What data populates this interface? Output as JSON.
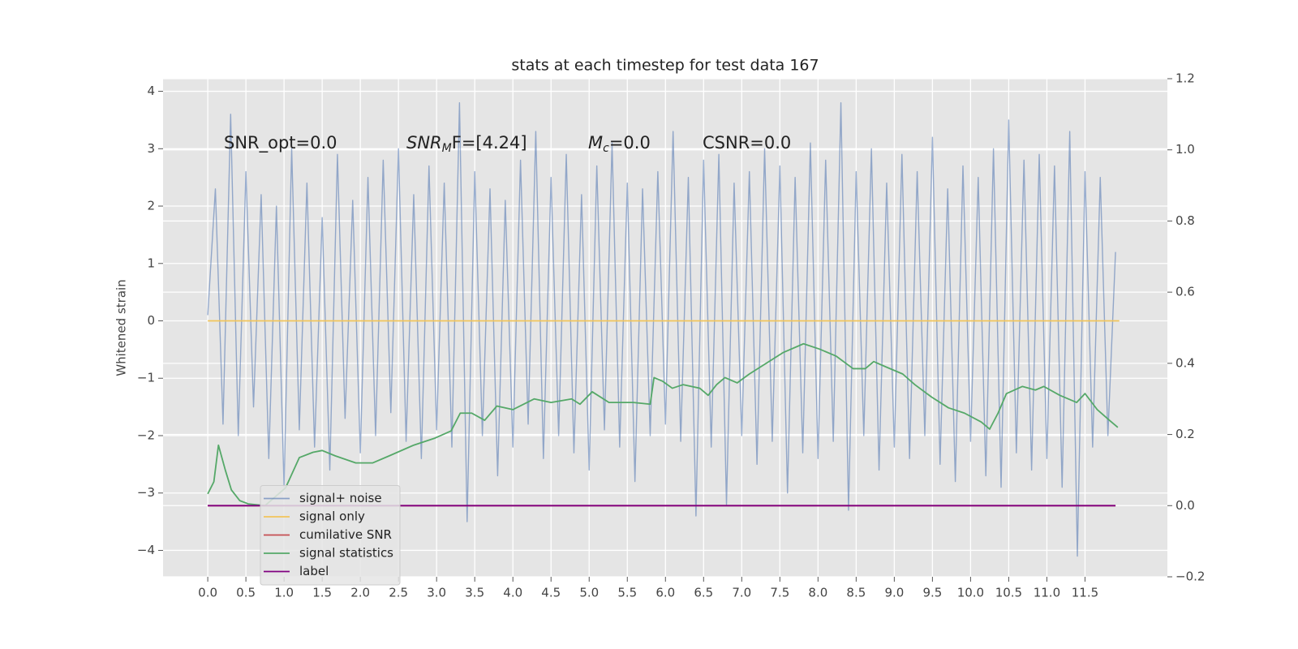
{
  "chart_data": {
    "type": "line",
    "title": "stats at each timestep for test data 167",
    "ylabel": "Whitened strain",
    "xlim": [
      -0.586,
      12.58
    ],
    "ylim": [
      -4.46,
      4.22
    ],
    "y2lim": [
      -0.2,
      1.2
    ],
    "xticks": [
      {
        "value": 0,
        "label": "0.0"
      },
      0.5,
      {
        "value": 1,
        "label": "1.0"
      },
      1.5,
      {
        "value": 2,
        "label": "2.0"
      },
      2.5,
      {
        "value": 3,
        "label": "3.0"
      },
      3.5,
      {
        "value": 4,
        "label": "4.0"
      },
      4.5,
      {
        "value": 5,
        "label": "5.0"
      },
      5.5,
      {
        "value": 6,
        "label": "6.0"
      },
      6.5,
      {
        "value": 7,
        "label": "7.0"
      },
      7.5,
      {
        "value": 8,
        "label": "8.0"
      },
      8.5,
      {
        "value": 9,
        "label": "9.0"
      },
      9.5,
      {
        "value": 10,
        "label": "10.0"
      },
      10.5,
      {
        "value": 11,
        "label": "11.0"
      },
      11.5
    ],
    "yticks": [
      {
        "value": -4,
        "label": "−4"
      },
      {
        "value": -3,
        "label": "−3"
      },
      {
        "value": -2,
        "label": "−2"
      },
      {
        "value": -1,
        "label": "−1"
      },
      0,
      1,
      2,
      3,
      4
    ],
    "y2ticks": [
      {
        "value": -0.2,
        "label": "−0.2"
      },
      {
        "value": 0,
        "label": "0.0"
      },
      0.2,
      0.4,
      0.6,
      0.8,
      {
        "value": 1,
        "label": "1.0"
      },
      1.2
    ],
    "grid": true,
    "legend": "lower left",
    "annotations": [
      "SNR_opt=0.0",
      {
        "text": "SNR",
        "sub": "M",
        "tail": "F=[4.24]"
      },
      {
        "text": "M",
        "sub": "c",
        "tail": "=0.0"
      },
      "CSNR=0.0"
    ],
    "series": [
      {
        "name": "signal+ noise",
        "color": "#4c72b0",
        "axis": "y",
        "x": [
          0,
          0.1,
          0.2,
          0.3,
          0.4,
          0.5,
          0.6,
          0.7,
          0.8,
          0.9,
          1,
          1.1,
          1.2,
          1.3,
          1.4,
          1.5,
          1.6,
          1.7,
          1.8,
          1.9,
          2,
          2.1,
          2.2,
          2.3,
          2.4,
          2.5,
          2.6,
          2.7,
          2.8,
          2.9,
          3,
          3.1,
          3.2,
          3.3,
          3.4,
          3.5,
          3.6,
          3.7,
          3.8,
          3.9,
          4,
          4.1,
          4.2,
          4.3,
          4.4,
          4.5,
          4.6,
          4.7,
          4.8,
          4.9,
          5,
          5.1,
          5.2,
          5.3,
          5.4,
          5.5,
          5.6,
          5.7,
          5.8,
          5.9,
          6,
          6.1,
          6.2,
          6.3,
          6.4,
          6.5,
          6.6,
          6.7,
          6.8,
          6.9,
          7,
          7.1,
          7.2,
          7.3,
          7.4,
          7.5,
          7.6,
          7.7,
          7.8,
          7.9,
          8,
          8.1,
          8.2,
          8.3,
          8.4,
          8.5,
          8.6,
          8.7,
          8.8,
          8.9,
          9,
          9.1,
          9.2,
          9.3,
          9.4,
          9.5,
          9.6,
          9.7,
          9.8,
          9.9,
          10,
          10.1,
          10.2,
          10.3,
          10.4,
          10.5,
          10.6,
          10.7,
          10.8,
          10.9,
          11,
          11.1,
          11.2,
          11.3,
          11.4,
          11.5,
          11.6,
          11.7,
          11.8,
          11.9
        ],
        "values": [
          0.1,
          2.3,
          -1.8,
          3.6,
          -2.0,
          2.6,
          -1.5,
          2.2,
          -2.4,
          2.0,
          -2.9,
          3.0,
          -1.9,
          2.4,
          -2.2,
          1.8,
          -2.6,
          2.9,
          -1.7,
          2.1,
          -2.3,
          2.5,
          -2.0,
          2.8,
          -1.6,
          3.0,
          -2.1,
          2.2,
          -2.4,
          2.7,
          -1.9,
          2.4,
          -2.2,
          3.8,
          -3.5,
          2.6,
          -2.0,
          2.3,
          -2.7,
          2.1,
          -2.2,
          2.8,
          -1.8,
          3.3,
          -2.4,
          2.5,
          -2.0,
          2.9,
          -2.3,
          2.2,
          -2.6,
          2.7,
          -1.9,
          3.1,
          -2.2,
          2.4,
          -2.8,
          2.3,
          -2.0,
          2.6,
          -1.8,
          3.3,
          -2.1,
          2.5,
          -3.4,
          2.8,
          -2.2,
          2.9,
          -3.2,
          2.4,
          -2.0,
          2.6,
          -2.5,
          3.0,
          -2.1,
          2.7,
          -3.0,
          2.5,
          -2.3,
          3.1,
          -2.4,
          2.8,
          -2.1,
          3.8,
          -3.3,
          2.6,
          -2.0,
          3.0,
          -2.6,
          2.4,
          -2.2,
          2.9,
          -2.4,
          2.6,
          -2.0,
          3.2,
          -2.5,
          2.3,
          -2.8,
          2.7,
          -2.1,
          2.5,
          -2.7,
          3.0,
          -2.9,
          3.5,
          -2.3,
          2.8,
          -2.6,
          2.9,
          -2.4,
          2.7,
          -2.9,
          3.3,
          -4.1,
          2.6,
          -2.2,
          2.5,
          -2.0,
          1.2
        ]
      },
      {
        "name": "signal only",
        "color": "#f2c45a",
        "axis": "y",
        "x": [
          0,
          11.95
        ],
        "values": [
          0,
          0
        ]
      },
      {
        "name": "cumilative SNR",
        "color": "#c44e52",
        "axis": "y2",
        "x": [
          0,
          11.9
        ],
        "values": [
          0,
          0
        ]
      },
      {
        "name": "signal statistics",
        "color": "#55a868",
        "axis": "y2",
        "x": [
          0,
          0.08,
          0.14,
          0.23,
          0.31,
          0.42,
          0.53,
          0.75,
          1.02,
          1.2,
          1.38,
          1.5,
          1.67,
          1.94,
          2.16,
          2.38,
          2.7,
          2.98,
          3.19,
          3.31,
          3.46,
          3.63,
          3.79,
          4.0,
          4.28,
          4.5,
          4.77,
          4.88,
          5.04,
          5.26,
          5.58,
          5.8,
          5.85,
          5.96,
          6.09,
          6.23,
          6.45,
          6.56,
          6.67,
          6.78,
          6.94,
          7.1,
          7.32,
          7.54,
          7.81,
          8.02,
          8.24,
          8.46,
          8.62,
          8.73,
          8.89,
          9.11,
          9.27,
          9.49,
          9.71,
          9.92,
          10.14,
          10.25,
          10.36,
          10.47,
          10.68,
          10.85,
          10.96,
          11.17,
          11.39,
          11.5,
          11.66,
          11.82,
          11.93
        ],
        "values": [
          0.033,
          0.067,
          0.17,
          0.1,
          0.044,
          0.014,
          0.005,
          0,
          0.05,
          0.135,
          0.15,
          0.155,
          0.14,
          0.12,
          0.12,
          0.14,
          0.17,
          0.19,
          0.21,
          0.26,
          0.26,
          0.24,
          0.28,
          0.27,
          0.3,
          0.29,
          0.3,
          0.285,
          0.32,
          0.29,
          0.29,
          0.285,
          0.36,
          0.35,
          0.33,
          0.34,
          0.33,
          0.31,
          0.34,
          0.36,
          0.345,
          0.37,
          0.4,
          0.43,
          0.455,
          0.44,
          0.42,
          0.385,
          0.385,
          0.405,
          0.39,
          0.37,
          0.34,
          0.305,
          0.275,
          0.26,
          0.235,
          0.215,
          0.26,
          0.315,
          0.335,
          0.325,
          0.335,
          0.31,
          0.29,
          0.315,
          0.27,
          0.24,
          0.22
        ]
      },
      {
        "name": "label",
        "color": "#800080",
        "axis": "y2",
        "x": [
          0,
          11.9
        ],
        "values": [
          0,
          0
        ]
      }
    ]
  }
}
